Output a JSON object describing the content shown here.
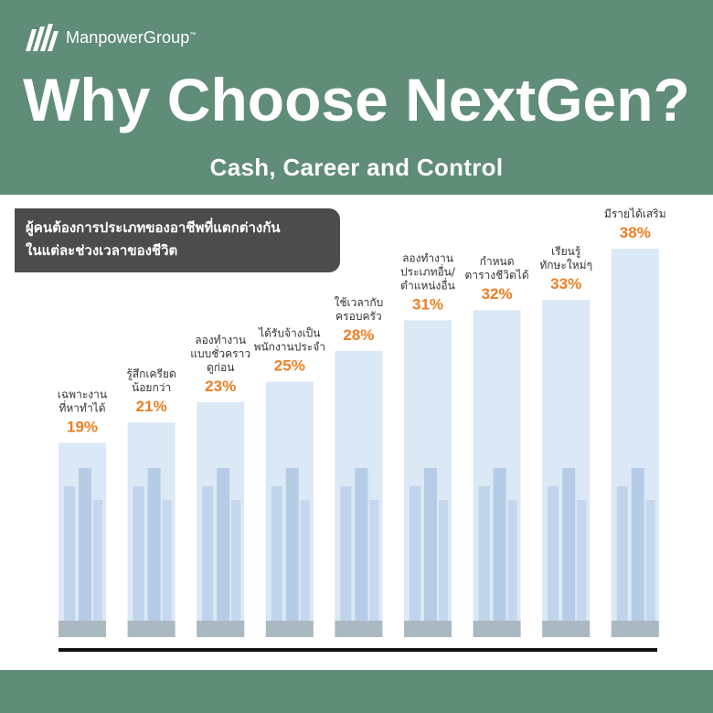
{
  "brand": {
    "name": "ManpowerGroup",
    "mark": "™"
  },
  "header": {
    "title": "Why Choose NextGen?",
    "subtitle": "Cash, Career and Control"
  },
  "chart_subtitle": {
    "line1": "ผู้คนต้องการประเภทของอาชีพที่แตกต่างกัน",
    "line2": "ในแต่ละช่วงเวลาของชีวิต"
  },
  "colors": {
    "header_bg": "#5f8d77",
    "bar_bg": "#dbe8f5",
    "value_text": "#ef7d20",
    "subtitle_box": "#4c4c4c"
  },
  "chart_data": {
    "type": "bar",
    "categories": [
      [
        "เฉพาะงาน",
        "ที่หาทำได้"
      ],
      [
        "รู้สึกเครียด",
        "น้อยกว่า"
      ],
      [
        "ลองทำงาน",
        "แบบชั่วคราว",
        "ดูก่อน"
      ],
      [
        "ได้รับจ้างเป็น",
        "พนักงานประจำ"
      ],
      [
        "ใช้เวลากับ",
        "ครอบครัว"
      ],
      [
        "ลองทำงาน",
        "ประเภทอื่น/",
        "ตำแหน่งอื่น"
      ],
      [
        "กำหนด",
        "ตารางชีวิตได้"
      ],
      [
        "เรียนรู้",
        "ทักษะใหม่ๆ"
      ],
      [
        "มีรายได้เสริม"
      ]
    ],
    "values": [
      19,
      21,
      23,
      25,
      28,
      31,
      32,
      33,
      38
    ],
    "value_labels": [
      "19%",
      "21%",
      "23%",
      "25%",
      "28%",
      "31%",
      "32%",
      "33%",
      "38%"
    ],
    "ylim": [
      0,
      40
    ],
    "grid": false,
    "legend": "none"
  }
}
